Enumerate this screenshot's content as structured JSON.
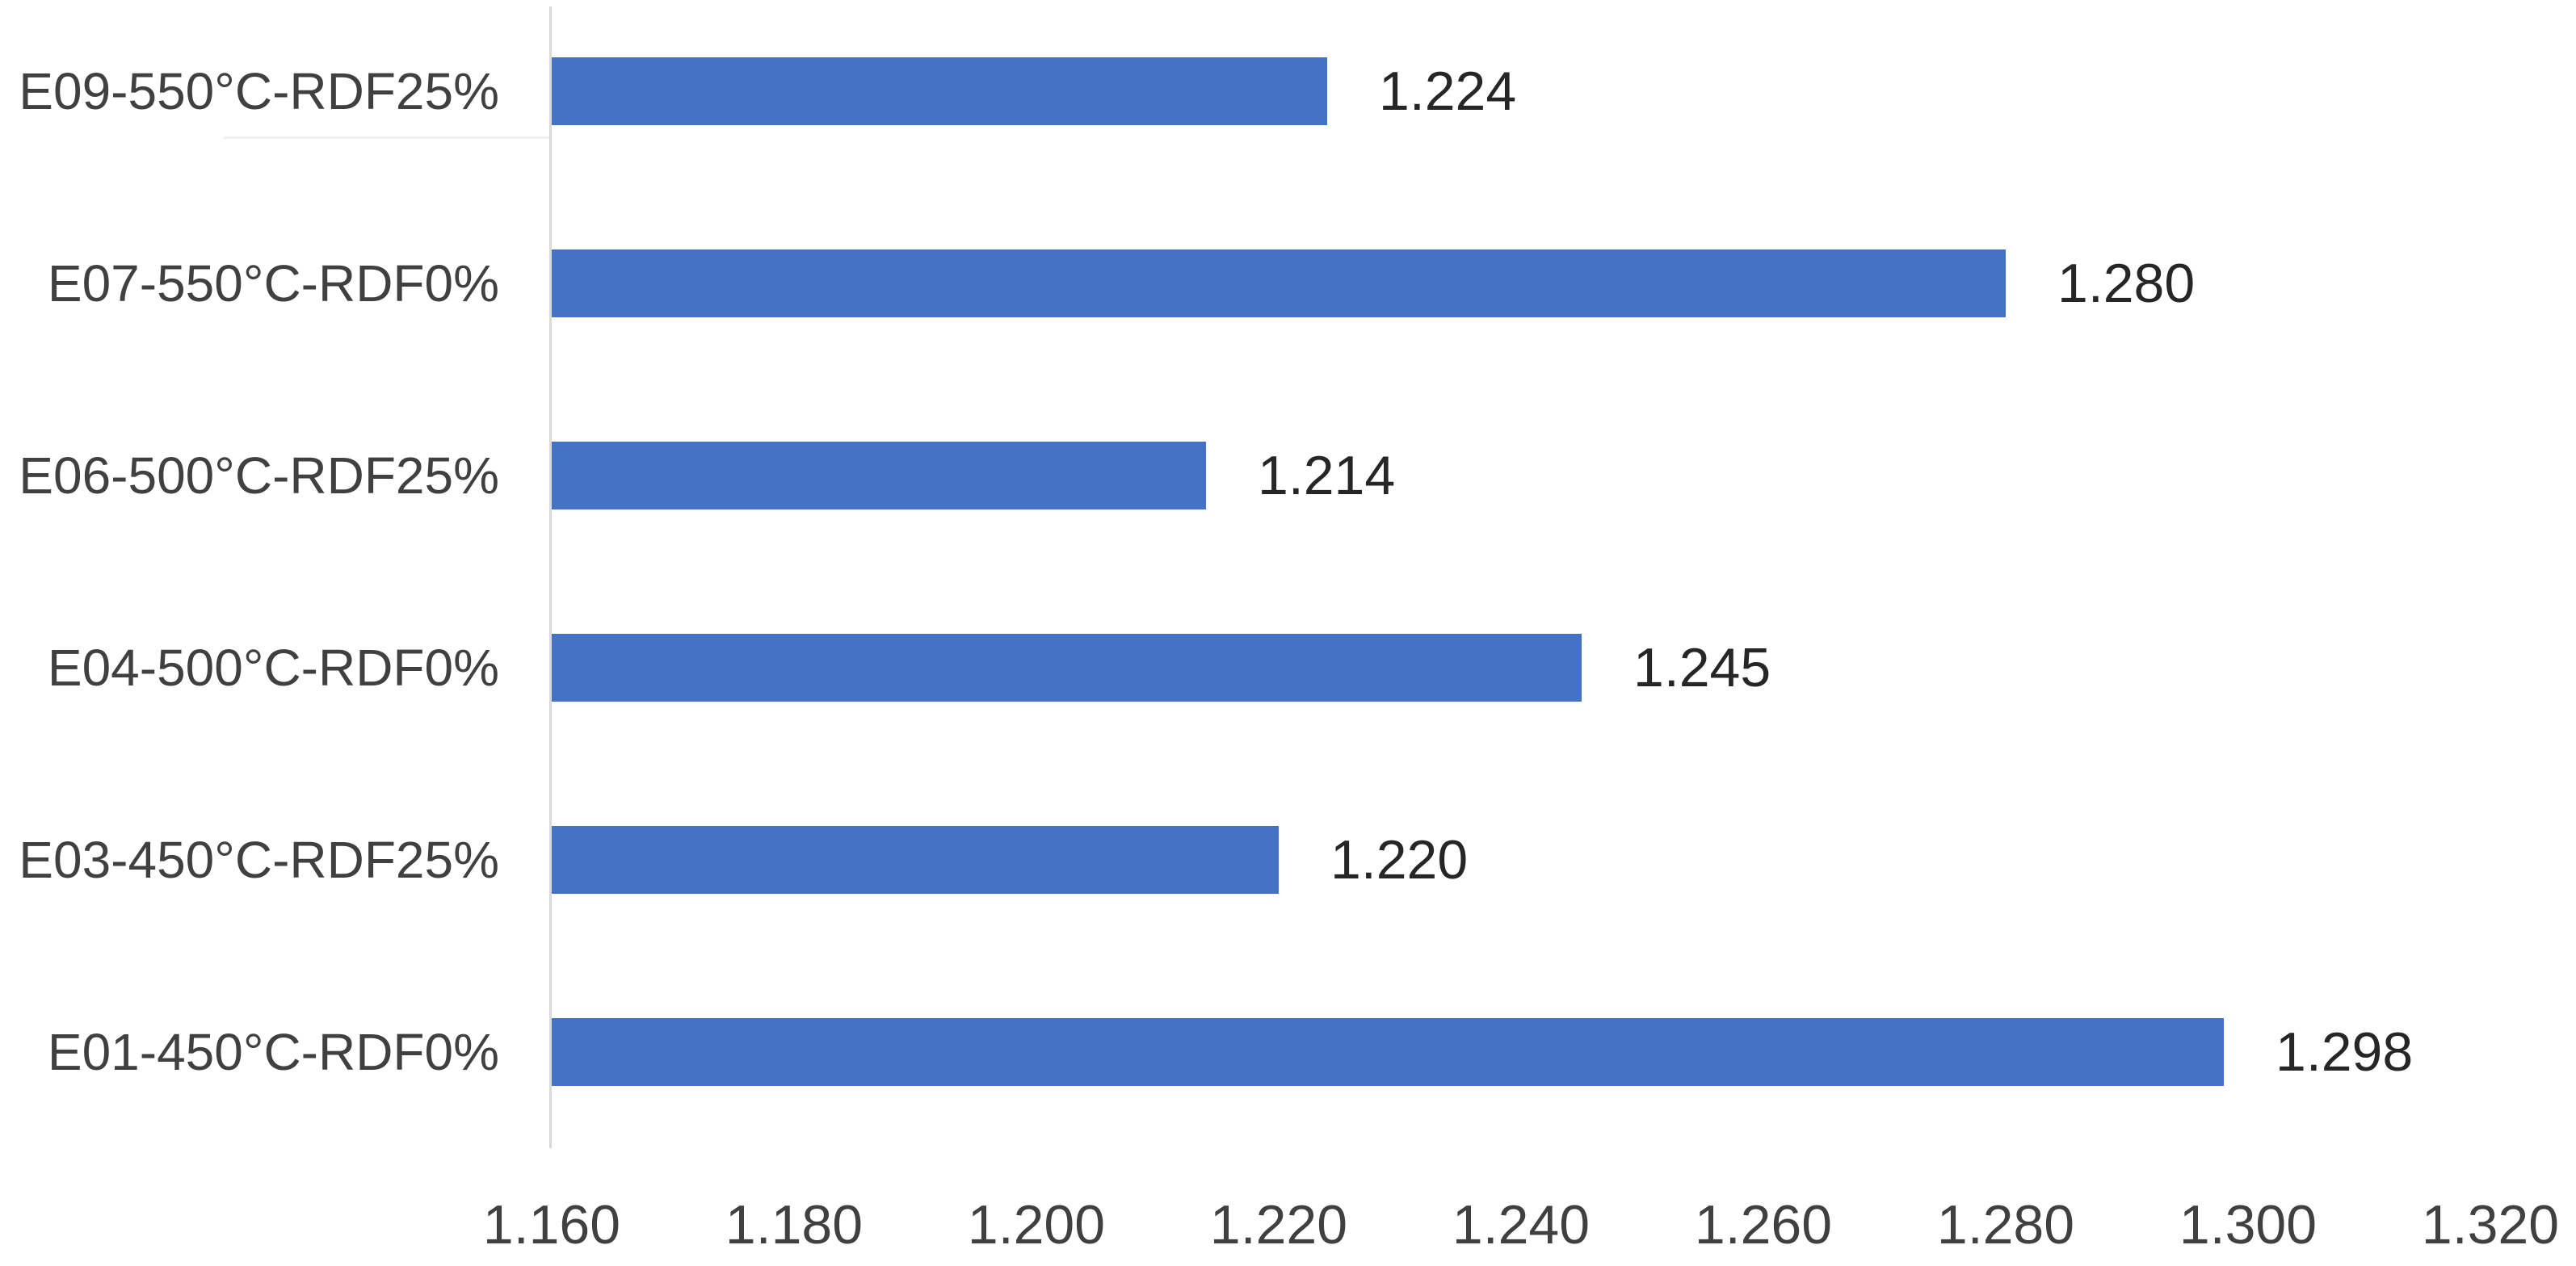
{
  "chart_data": {
    "type": "bar",
    "orientation": "horizontal",
    "title": "",
    "xlabel": "",
    "ylabel": "",
    "categories": [
      "E09-550°C-RDF25%",
      "E07-550°C-RDF0%",
      "E06-500°C-RDF25%",
      "E04-500°C-RDF0%",
      "E03-450°C-RDF25%",
      "E01-450°C-RDF0%"
    ],
    "values": [
      1.224,
      1.28,
      1.214,
      1.245,
      1.22,
      1.298
    ],
    "data_labels": [
      "1.224",
      "1.280",
      "1.214",
      "1.245",
      "1.220",
      "1.298"
    ],
    "xlim": [
      1.16,
      1.32
    ],
    "x_tick_values": [
      1.16,
      1.18,
      1.2,
      1.22,
      1.24,
      1.26,
      1.28,
      1.3,
      1.32
    ],
    "x_tick_labels": [
      "1.160",
      "1.180",
      "1.200",
      "1.220",
      "1.240",
      "1.260",
      "1.280",
      "1.300",
      "1.320"
    ],
    "grid": false,
    "legend": false,
    "bar_color": "#4472C4",
    "category_label_color": "#404040",
    "data_label_color": "#262626",
    "tick_label_color": "#404040",
    "axis_line_color": "#D9D9D9"
  }
}
